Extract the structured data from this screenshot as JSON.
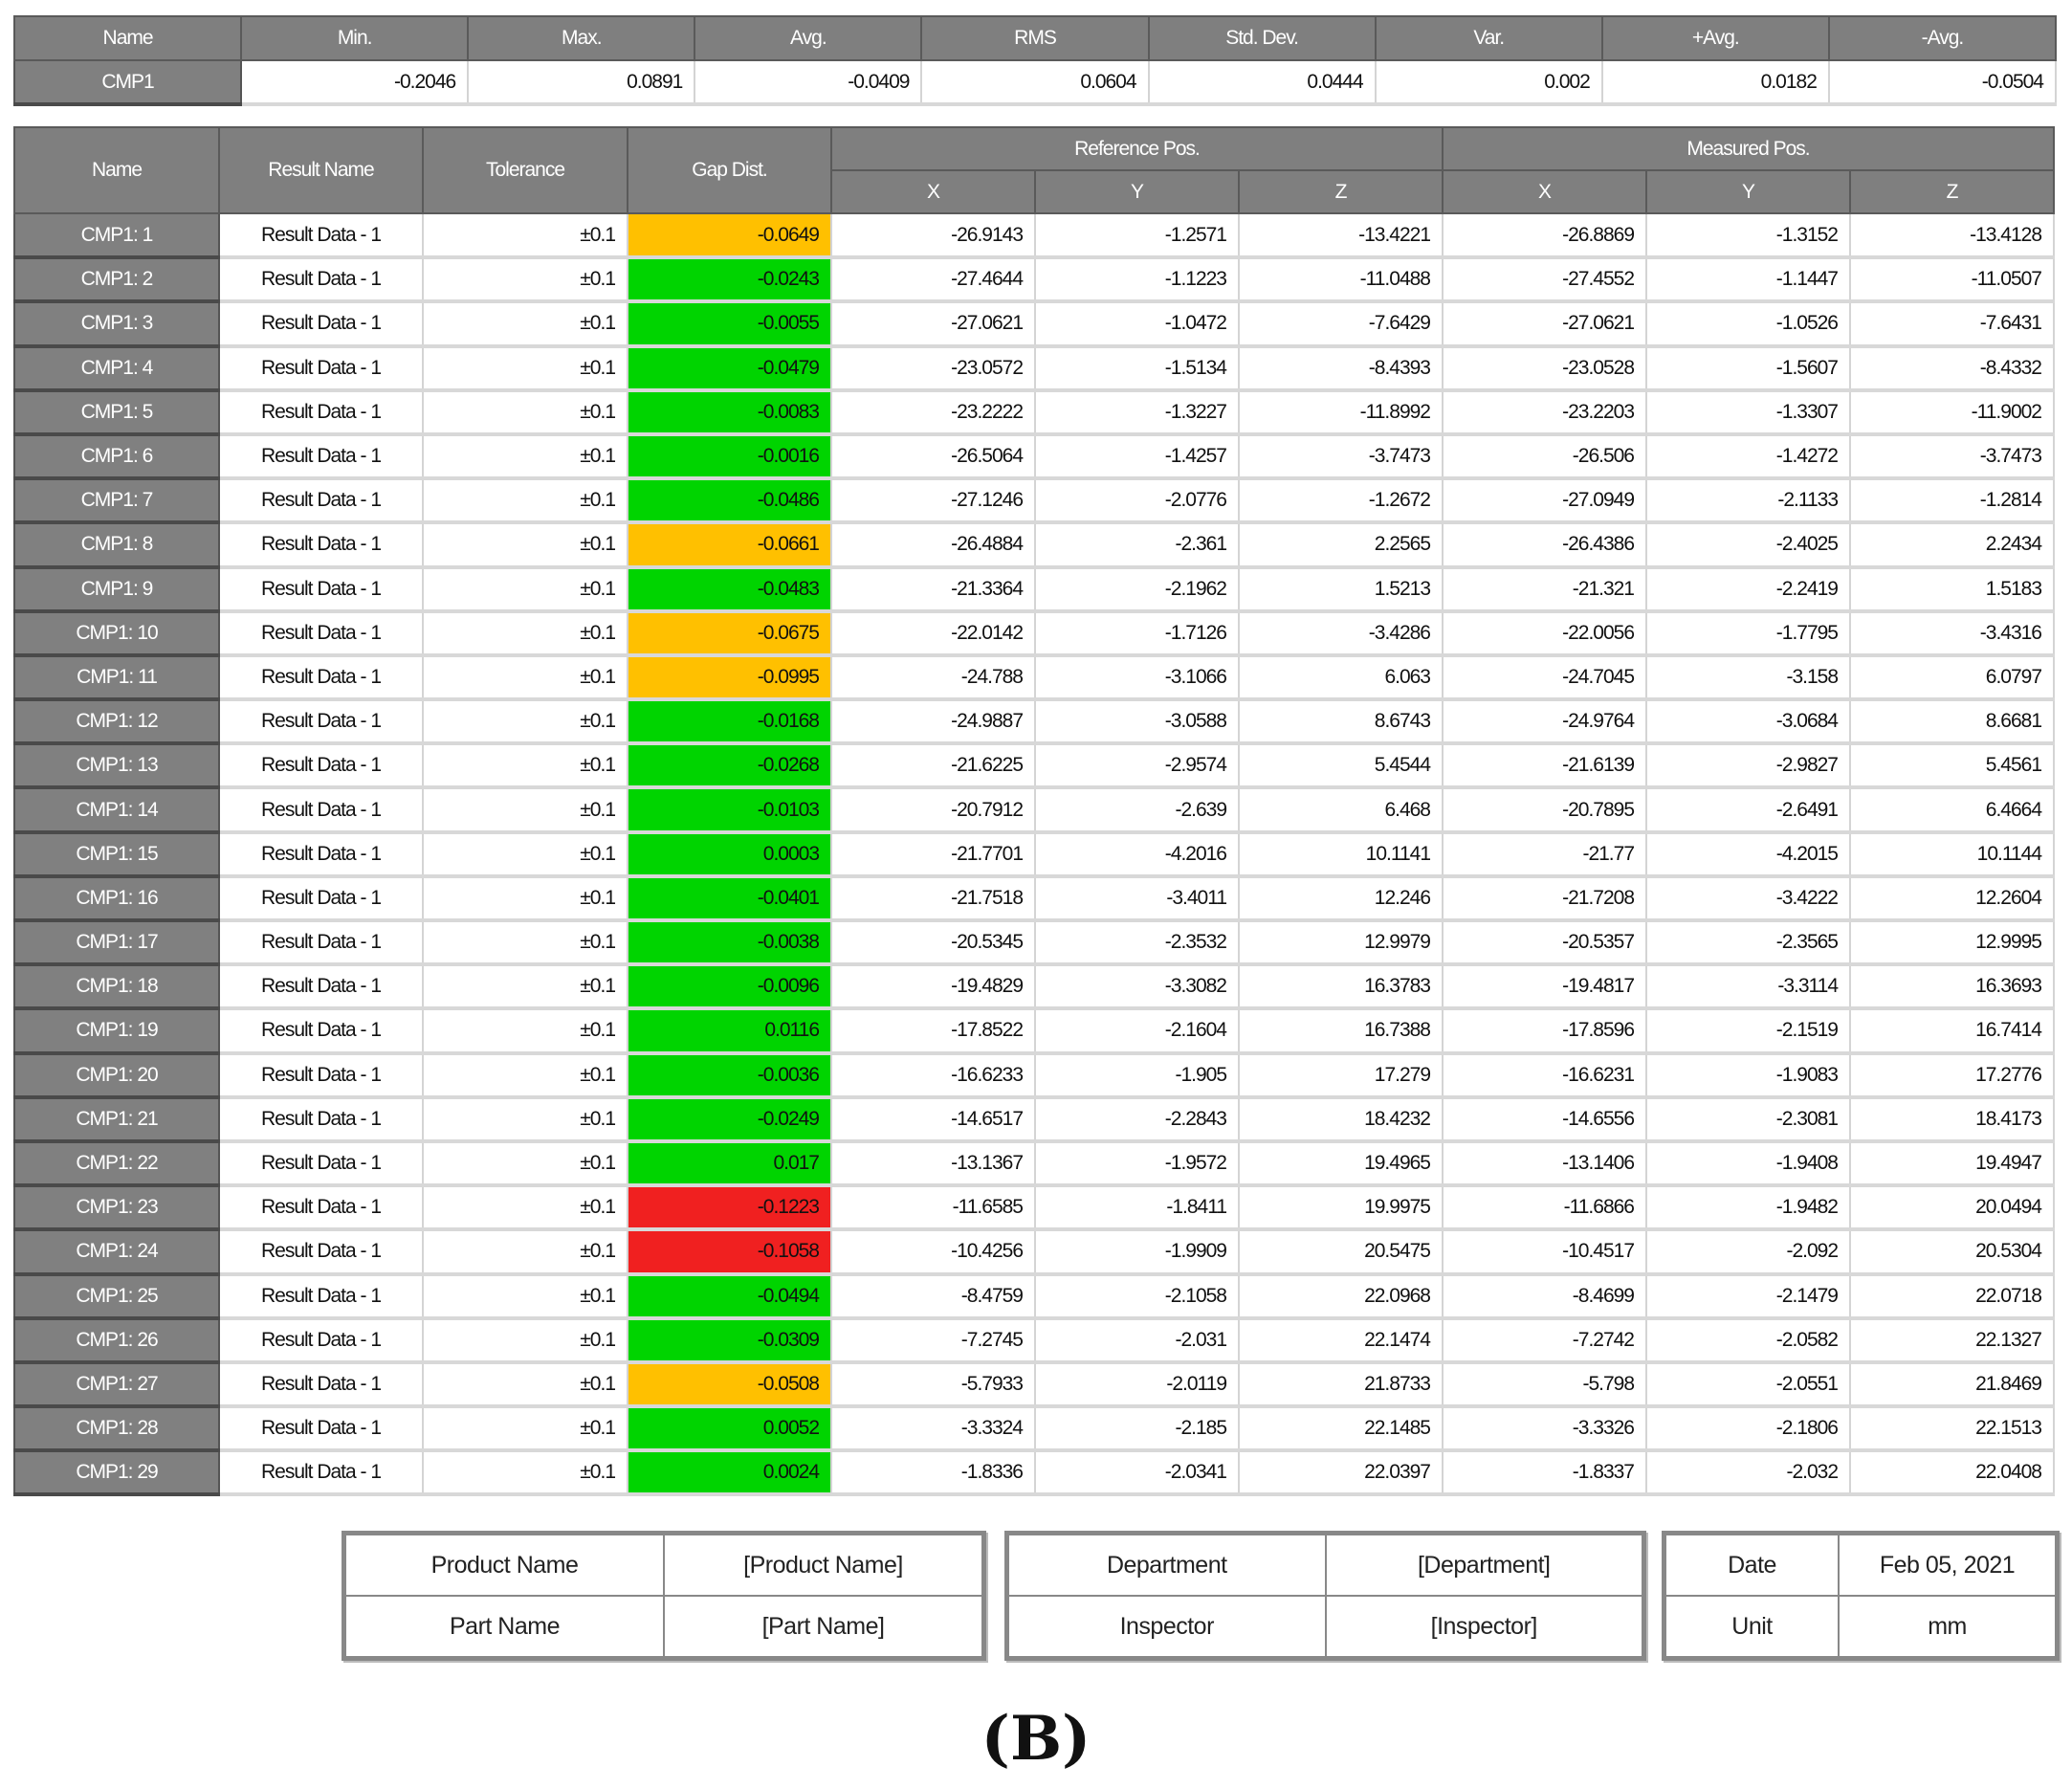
{
  "summary": {
    "headers": [
      "Name",
      "Min.",
      "Max.",
      "Avg.",
      "RMS",
      "Std. Dev.",
      "Var.",
      "+Avg.",
      "-Avg."
    ],
    "row": [
      "CMP1",
      "-0.2046",
      "0.0891",
      "-0.0409",
      "0.0604",
      "0.0444",
      "0.002",
      "0.0182",
      "-0.0504"
    ]
  },
  "main": {
    "headers": {
      "name": "Name",
      "result_name": "Result Name",
      "tolerance": "Tolerance",
      "gap_dist": "Gap Dist.",
      "reference_pos": "Reference Pos.",
      "measured_pos": "Measured Pos.",
      "x": "X",
      "y": "Y",
      "z": "Z"
    },
    "status_colors": {
      "ok": "#00d400",
      "warn": "#ffc000",
      "fail": "#f02020"
    },
    "rows": [
      [
        "CMP1: 1",
        "Result Data - 1",
        "±0.1",
        "-0.0649",
        "warn",
        "-26.9143",
        "-1.2571",
        "-13.4221",
        "-26.8869",
        "-1.3152",
        "-13.4128"
      ],
      [
        "CMP1: 2",
        "Result Data - 1",
        "±0.1",
        "-0.0243",
        "ok",
        "-27.4644",
        "-1.1223",
        "-11.0488",
        "-27.4552",
        "-1.1447",
        "-11.0507"
      ],
      [
        "CMP1: 3",
        "Result Data - 1",
        "±0.1",
        "-0.0055",
        "ok",
        "-27.0621",
        "-1.0472",
        "-7.6429",
        "-27.0621",
        "-1.0526",
        "-7.6431"
      ],
      [
        "CMP1: 4",
        "Result Data - 1",
        "±0.1",
        "-0.0479",
        "ok",
        "-23.0572",
        "-1.5134",
        "-8.4393",
        "-23.0528",
        "-1.5607",
        "-8.4332"
      ],
      [
        "CMP1: 5",
        "Result Data - 1",
        "±0.1",
        "-0.0083",
        "ok",
        "-23.2222",
        "-1.3227",
        "-11.8992",
        "-23.2203",
        "-1.3307",
        "-11.9002"
      ],
      [
        "CMP1: 6",
        "Result Data - 1",
        "±0.1",
        "-0.0016",
        "ok",
        "-26.5064",
        "-1.4257",
        "-3.7473",
        "-26.506",
        "-1.4272",
        "-3.7473"
      ],
      [
        "CMP1: 7",
        "Result Data - 1",
        "±0.1",
        "-0.0486",
        "ok",
        "-27.1246",
        "-2.0776",
        "-1.2672",
        "-27.0949",
        "-2.1133",
        "-1.2814"
      ],
      [
        "CMP1: 8",
        "Result Data - 1",
        "±0.1",
        "-0.0661",
        "warn",
        "-26.4884",
        "-2.361",
        "2.2565",
        "-26.4386",
        "-2.4025",
        "2.2434"
      ],
      [
        "CMP1: 9",
        "Result Data - 1",
        "±0.1",
        "-0.0483",
        "ok",
        "-21.3364",
        "-2.1962",
        "1.5213",
        "-21.321",
        "-2.2419",
        "1.5183"
      ],
      [
        "CMP1: 10",
        "Result Data - 1",
        "±0.1",
        "-0.0675",
        "warn",
        "-22.0142",
        "-1.7126",
        "-3.4286",
        "-22.0056",
        "-1.7795",
        "-3.4316"
      ],
      [
        "CMP1: 11",
        "Result Data - 1",
        "±0.1",
        "-0.0995",
        "warn",
        "-24.788",
        "-3.1066",
        "6.063",
        "-24.7045",
        "-3.158",
        "6.0797"
      ],
      [
        "CMP1: 12",
        "Result Data - 1",
        "±0.1",
        "-0.0168",
        "ok",
        "-24.9887",
        "-3.0588",
        "8.6743",
        "-24.9764",
        "-3.0684",
        "8.6681"
      ],
      [
        "CMP1: 13",
        "Result Data - 1",
        "±0.1",
        "-0.0268",
        "ok",
        "-21.6225",
        "-2.9574",
        "5.4544",
        "-21.6139",
        "-2.9827",
        "5.4561"
      ],
      [
        "CMP1: 14",
        "Result Data - 1",
        "±0.1",
        "-0.0103",
        "ok",
        "-20.7912",
        "-2.639",
        "6.468",
        "-20.7895",
        "-2.6491",
        "6.4664"
      ],
      [
        "CMP1: 15",
        "Result Data - 1",
        "±0.1",
        "0.0003",
        "ok",
        "-21.7701",
        "-4.2016",
        "10.1141",
        "-21.77",
        "-4.2015",
        "10.1144"
      ],
      [
        "CMP1: 16",
        "Result Data - 1",
        "±0.1",
        "-0.0401",
        "ok",
        "-21.7518",
        "-3.4011",
        "12.246",
        "-21.7208",
        "-3.4222",
        "12.2604"
      ],
      [
        "CMP1: 17",
        "Result Data - 1",
        "±0.1",
        "-0.0038",
        "ok",
        "-20.5345",
        "-2.3532",
        "12.9979",
        "-20.5357",
        "-2.3565",
        "12.9995"
      ],
      [
        "CMP1: 18",
        "Result Data - 1",
        "±0.1",
        "-0.0096",
        "ok",
        "-19.4829",
        "-3.3082",
        "16.3783",
        "-19.4817",
        "-3.3114",
        "16.3693"
      ],
      [
        "CMP1: 19",
        "Result Data - 1",
        "±0.1",
        "0.0116",
        "ok",
        "-17.8522",
        "-2.1604",
        "16.7388",
        "-17.8596",
        "-2.1519",
        "16.7414"
      ],
      [
        "CMP1: 20",
        "Result Data - 1",
        "±0.1",
        "-0.0036",
        "ok",
        "-16.6233",
        "-1.905",
        "17.279",
        "-16.6231",
        "-1.9083",
        "17.2776"
      ],
      [
        "CMP1: 21",
        "Result Data - 1",
        "±0.1",
        "-0.0249",
        "ok",
        "-14.6517",
        "-2.2843",
        "18.4232",
        "-14.6556",
        "-2.3081",
        "18.4173"
      ],
      [
        "CMP1: 22",
        "Result Data - 1",
        "±0.1",
        "0.017",
        "ok",
        "-13.1367",
        "-1.9572",
        "19.4965",
        "-13.1406",
        "-1.9408",
        "19.4947"
      ],
      [
        "CMP1: 23",
        "Result Data - 1",
        "±0.1",
        "-0.1223",
        "fail",
        "-11.6585",
        "-1.8411",
        "19.9975",
        "-11.6866",
        "-1.9482",
        "20.0494"
      ],
      [
        "CMP1: 24",
        "Result Data - 1",
        "±0.1",
        "-0.1058",
        "fail",
        "-10.4256",
        "-1.9909",
        "20.5475",
        "-10.4517",
        "-2.092",
        "20.5304"
      ],
      [
        "CMP1: 25",
        "Result Data - 1",
        "±0.1",
        "-0.0494",
        "ok",
        "-8.4759",
        "-2.1058",
        "22.0968",
        "-8.4699",
        "-2.1479",
        "22.0718"
      ],
      [
        "CMP1: 26",
        "Result Data - 1",
        "±0.1",
        "-0.0309",
        "ok",
        "-7.2745",
        "-2.031",
        "22.1474",
        "-7.2742",
        "-2.0582",
        "22.1327"
      ],
      [
        "CMP1: 27",
        "Result Data - 1",
        "±0.1",
        "-0.0508",
        "warn",
        "-5.7933",
        "-2.0119",
        "21.8733",
        "-5.798",
        "-2.0551",
        "21.8469"
      ],
      [
        "CMP1: 28",
        "Result Data - 1",
        "±0.1",
        "0.0052",
        "ok",
        "-3.3324",
        "-2.185",
        "22.1485",
        "-3.3326",
        "-2.1806",
        "22.1513"
      ],
      [
        "CMP1: 29",
        "Result Data - 1",
        "±0.1",
        "0.0024",
        "ok",
        "-1.8336",
        "-2.0341",
        "22.0397",
        "-1.8337",
        "-2.032",
        "22.0408"
      ]
    ]
  },
  "footer": {
    "product_label": "Product Name",
    "product_value": "[Product Name]",
    "part_label": "Part Name",
    "part_value": "[Part Name]",
    "department_label": "Department",
    "department_value": "[Department]",
    "inspector_label": "Inspector",
    "inspector_value": "[Inspector]",
    "date_label": "Date",
    "date_value": "Feb 05, 2021",
    "unit_label": "Unit",
    "unit_value": "mm"
  },
  "caption": "(B)"
}
